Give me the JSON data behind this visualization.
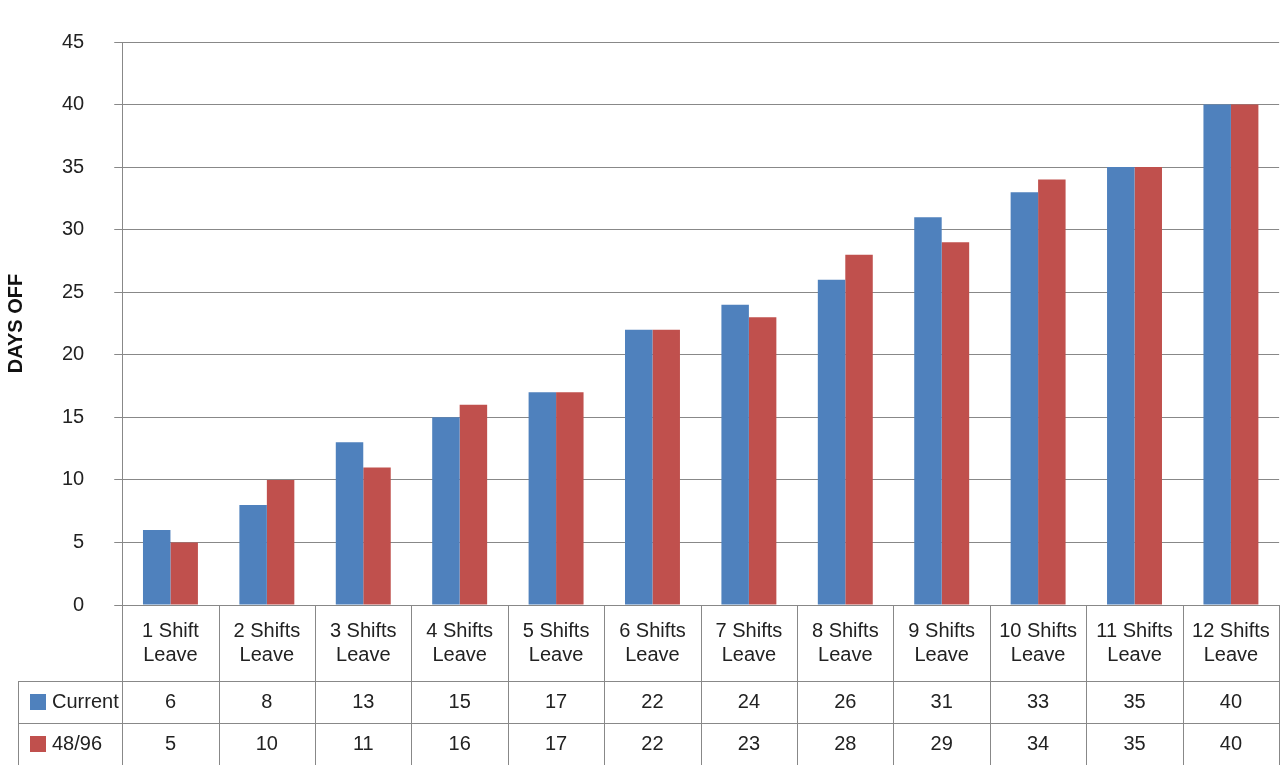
{
  "chart_data": {
    "type": "bar",
    "ylabel": "DAYS OFF",
    "categories": [
      "1 Shift Leave",
      "2 Shifts Leave",
      "3 Shifts Leave",
      "4 Shifts Leave",
      "5 Shifts Leave",
      "6 Shifts Leave",
      "7 Shifts Leave",
      "8 Shifts Leave",
      "9 Shifts Leave",
      "10 Shifts Leave",
      "11 Shifts Leave",
      "12 Shifts Leave"
    ],
    "series": [
      {
        "name": "Current",
        "color": "#4f81bd",
        "values": [
          6,
          8,
          13,
          15,
          17,
          22,
          24,
          26,
          31,
          33,
          35,
          40
        ]
      },
      {
        "name": "48/96",
        "color": "#c0504d",
        "values": [
          5,
          10,
          11,
          16,
          17,
          22,
          23,
          28,
          29,
          34,
          35,
          40
        ]
      }
    ],
    "ylim": [
      0,
      45
    ],
    "yticks": [
      0,
      5,
      10,
      15,
      20,
      25,
      30,
      35,
      40,
      45
    ],
    "grid": "y",
    "legend": "bottom",
    "data_labels": true
  }
}
